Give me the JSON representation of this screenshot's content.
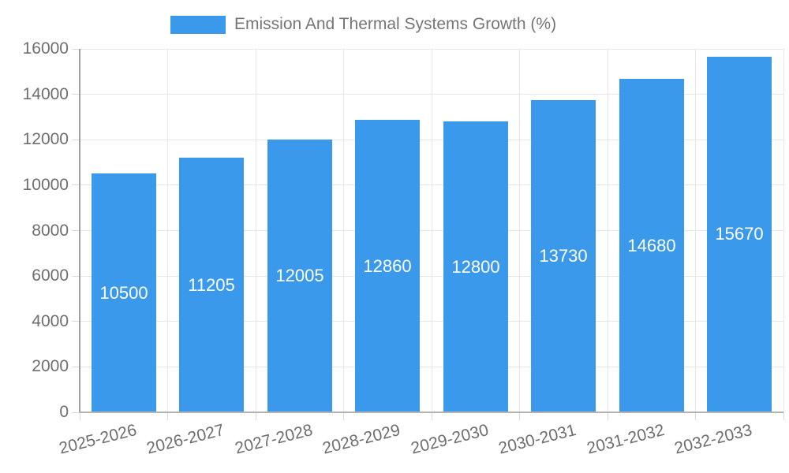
{
  "chart_data": {
    "type": "bar",
    "title": "Emission And Thermal Systems Growth (%)",
    "categories": [
      "2025-2026",
      "2026-2027",
      "2027-2028",
      "2028-2029",
      "2029-2030",
      "2030-2031",
      "2031-2032",
      "2032-2033"
    ],
    "values": [
      10500,
      11205,
      12005,
      12860,
      12800,
      13730,
      14680,
      15670
    ],
    "bar_labels": [
      "10500",
      "11205",
      "12005",
      "12860",
      "12800",
      "13730",
      "14680",
      "15670"
    ],
    "xlabel": "",
    "ylabel": "",
    "ylim": [
      0,
      16000
    ],
    "yticks": [
      0,
      2000,
      4000,
      6000,
      8000,
      10000,
      12000,
      14000,
      16000
    ],
    "ytick_labels": [
      "0",
      "2000",
      "4000",
      "6000",
      "8000",
      "10000",
      "12000",
      "14000",
      "16000"
    ],
    "grid": true,
    "legend_position": "top",
    "colors": {
      "bar": "#3B99EC",
      "bar_label": "#FFFFFF",
      "title_text": "#757575",
      "axis_text": "#6E6E6E",
      "gridline": "#E6E6E6",
      "axis_line": "#9E9E9E",
      "baseline": "#B3B3B3",
      "tick": "#D9D9D9",
      "background": "#FFFFFF"
    }
  }
}
